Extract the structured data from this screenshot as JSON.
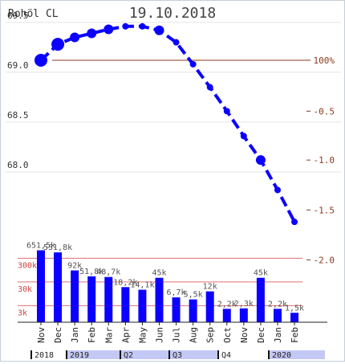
{
  "header": {
    "instrument": "Rohöl CL",
    "date": "19.10.2018"
  },
  "colors": {
    "series": "#0b00ff",
    "reference": "#8a3a1c",
    "right_axis_text": "#8a3a1c",
    "volume_grid": "#e07070",
    "volume_axis_text": "#d04040",
    "volume_label": "#555555",
    "timeline_fill": "#c4c8f4"
  },
  "chart_data": [
    {
      "type": "line",
      "name": "price-curve",
      "categories": [
        "Nov",
        "Dec",
        "Jan",
        "Feb",
        "Mar",
        "Apr",
        "May",
        "Jun",
        "Jul",
        "Aug",
        "Sep",
        "Oct",
        "Nov",
        "Dec",
        "Jan",
        "Feb"
      ],
      "values": [
        69.12,
        69.28,
        69.35,
        69.39,
        69.43,
        69.46,
        69.46,
        69.42,
        69.3,
        69.08,
        68.85,
        68.61,
        68.36,
        68.12,
        67.82,
        67.5
      ],
      "marker_size": [
        "large",
        "large",
        "medium",
        "medium",
        "medium",
        "small",
        "small",
        "medium",
        "small",
        "small",
        "small",
        "small",
        "small",
        "medium",
        "small",
        "small"
      ],
      "ylim": [
        67.3,
        69.7
      ],
      "left_ticks": [
        68.0,
        68.5,
        69.0,
        69.5
      ],
      "right_ticks": [
        {
          "price": 69.12,
          "label": "100%"
        },
        {
          "price": 68.61,
          "label": "-0.5"
        },
        {
          "price": 68.12,
          "label": "-1.0"
        },
        {
          "price": 67.62,
          "label": "-1.5"
        },
        {
          "price": 67.12,
          "label": "-2.0"
        }
      ],
      "reference_price": 69.12,
      "grid": "horizontal"
    },
    {
      "type": "bar",
      "name": "open-interest-volume",
      "categories": [
        "Nov",
        "Dec",
        "Jan",
        "Feb",
        "Mar",
        "Apr",
        "May",
        "Jun",
        "Jul",
        "Aug",
        "Sep",
        "Oct",
        "Nov",
        "Dec",
        "Jan",
        "Feb"
      ],
      "values": [
        651500,
        531800,
        92000,
        51800,
        48700,
        18200,
        14100,
        45000,
        6700,
        5500,
        12000,
        2200,
        2300,
        45000,
        2200,
        1500
      ],
      "labels": [
        "651,5k",
        "531,8k",
        "92k",
        "51,8k",
        "48,7k",
        "18,2k",
        "14,1k",
        "45k",
        "6,7k",
        "5,5k",
        "12k",
        "2,2k",
        "2,3k",
        "45k",
        "2,2k",
        "1,5k"
      ],
      "scale": "log",
      "reference_lines": [
        {
          "value": 3000,
          "label": "3k"
        },
        {
          "value": 30000,
          "label": "30k"
        },
        {
          "value": 300000,
          "label": "300k"
        }
      ]
    }
  ],
  "timeline": {
    "segments": [
      {
        "label": "2018",
        "shaded": false
      },
      {
        "label": "2019",
        "shaded": true
      },
      {
        "label": "Q2",
        "shaded": true
      },
      {
        "label": "Q3",
        "shaded": true
      },
      {
        "label": "Q4",
        "shaded": false
      },
      {
        "label": "2020",
        "shaded": true
      }
    ]
  }
}
